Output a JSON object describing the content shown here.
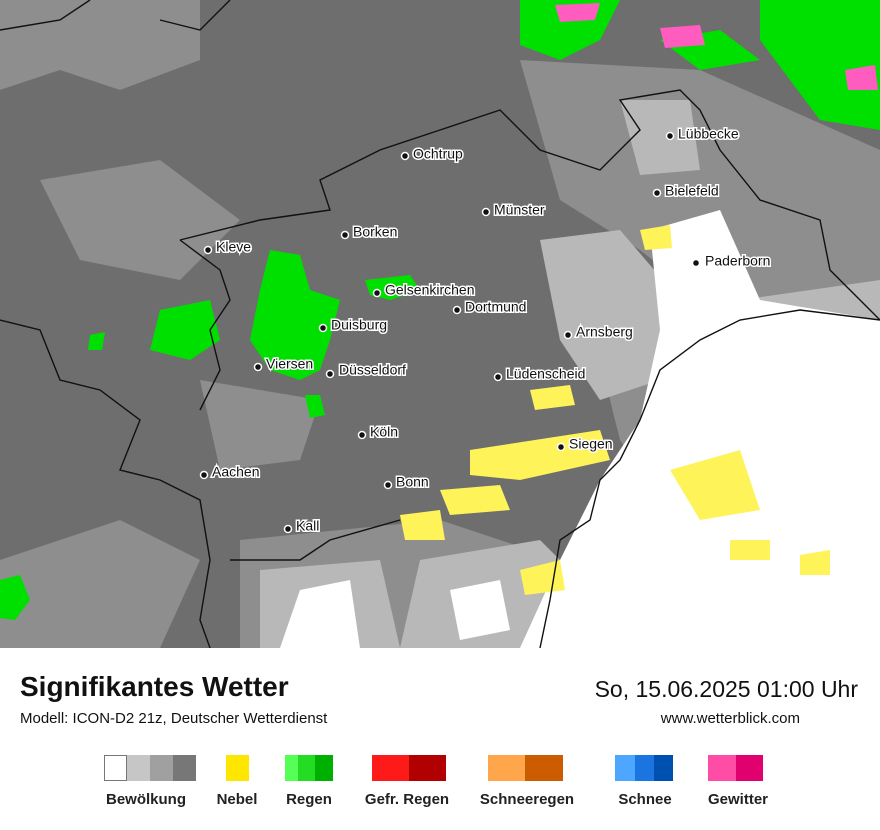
{
  "map": {
    "cities": [
      "Ochtrup",
      "Lübbecke",
      "Bielefeld",
      "Münster",
      "Borken",
      "Kleve",
      "Paderborn",
      "Gelsenkirchen",
      "Dortmund",
      "Duisburg",
      "Arnsberg",
      "Viersen",
      "Düsseldorf",
      "Lüdenscheid",
      "Köln",
      "Siegen",
      "Aachen",
      "Bonn",
      "Kall"
    ]
  },
  "footer": {
    "title": "Signifikantes Wetter",
    "model": "Modell: ICON-D2 21z, Deutscher Wetterdienst",
    "datetime": "So, 15.06.2025 01:00 Uhr",
    "website": "www.wetterblick.com"
  },
  "legend": [
    "Bewölkung",
    "Nebel",
    "Regen",
    "Gefr. Regen",
    "Schneeregen",
    "Schnee",
    "Gewitter"
  ]
}
